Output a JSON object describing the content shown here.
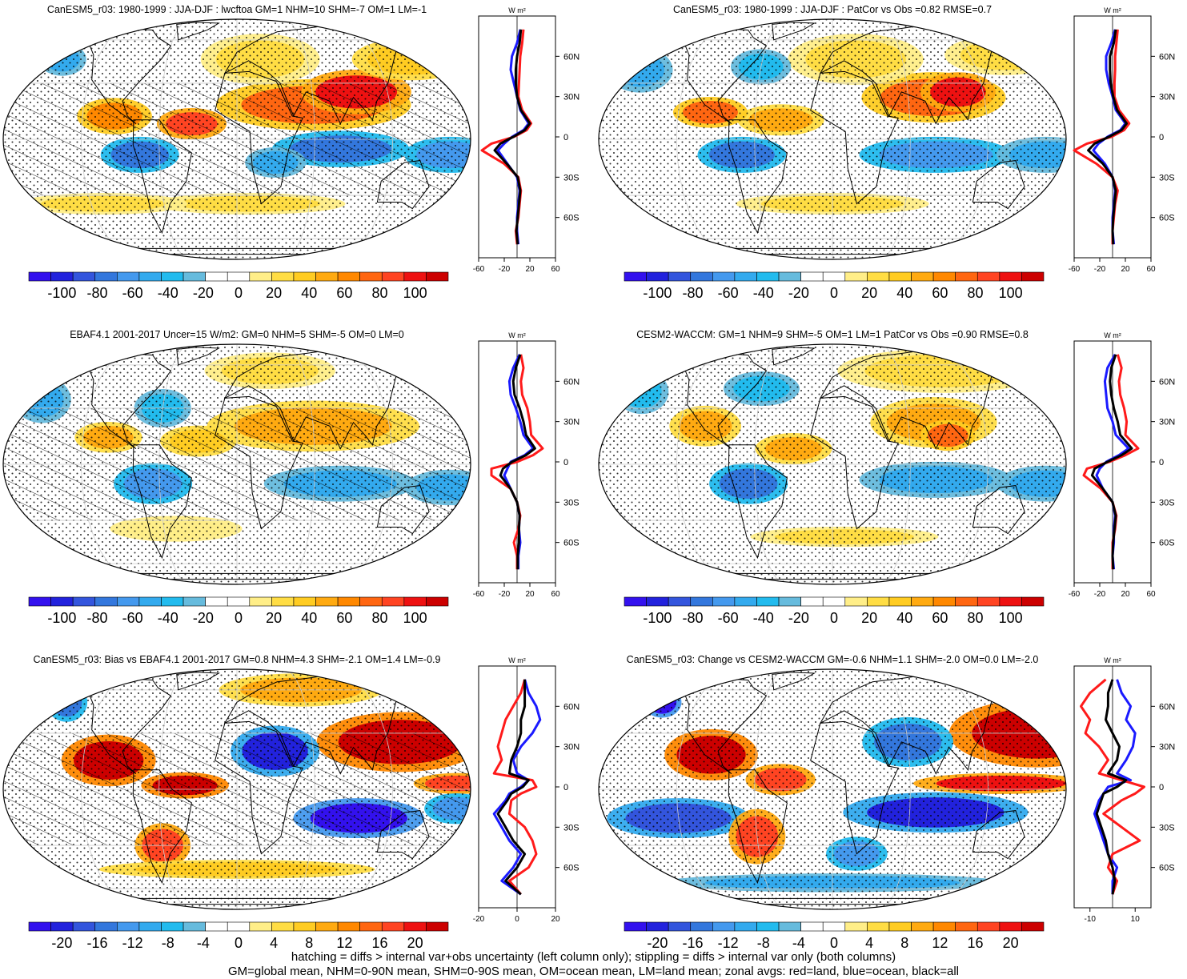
{
  "colors": {
    "ocean_line": "#1a1aff",
    "land_line": "#ff1a1a",
    "all_line": "#000000",
    "coast": "#000000",
    "palette": [
      "#3311ee",
      "#2222dd",
      "#3355dd",
      "#3377dd",
      "#4499ee",
      "#33aaee",
      "#22bbee",
      "#66bbdd",
      "#ffffff",
      "#ffffff",
      "#ffee88",
      "#ffdd44",
      "#ffcc22",
      "#ffaa11",
      "#ff8800",
      "#ff6611",
      "#ff4422",
      "#ee1111",
      "#cc0000"
    ]
  },
  "units_label": "W m²",
  "lat_labels": [
    "60N",
    "30N",
    "0",
    "30S",
    "60S"
  ],
  "footer": {
    "line1": "hatching = diffs > internal var+obs uncertainty (left column only); stippling = diffs > internal var only (both columns)",
    "line2": "GM=global mean, NHM=0-90N mean, SHM=0-90S mean, OM=ocean mean, LM=land mean; zonal avgs: red=land, blue=ocean, black=all"
  },
  "chart_data": [
    {
      "type": "heatmap",
      "title": "CanESM5_r03: 1980-1999 : JJA-DJF : lwcftoa GM=1 NHM=10 SHM=-7 OM=1 LM=-1",
      "colorbar_ticks": [
        "-100",
        "-80",
        "-60",
        "-40",
        "-20",
        "0",
        "20",
        "40",
        "60",
        "80",
        "100"
      ],
      "zonal_xticks": [
        "-60",
        "-20",
        "20",
        "60"
      ],
      "zonal_xlim": [
        -60,
        60
      ],
      "hatched": true,
      "features": [
        {
          "lon": 60,
          "lat": 18,
          "sx": 55,
          "sy": 10,
          "v": 60
        },
        {
          "lon": 95,
          "lat": 25,
          "sx": 30,
          "sy": 9,
          "v": 80
        },
        {
          "lon": -35,
          "lat": 8,
          "sx": 20,
          "sy": 6,
          "v": 70
        },
        {
          "lon": -95,
          "lat": 12,
          "sx": 22,
          "sy": 7,
          "v": 55
        },
        {
          "lon": 150,
          "lat": 45,
          "sx": 30,
          "sy": 10,
          "v": 30
        },
        {
          "lon": 20,
          "lat": 45,
          "sx": 35,
          "sy": 12,
          "v": 25
        },
        {
          "lon": -150,
          "lat": 45,
          "sx": 20,
          "sy": 8,
          "v": -45
        },
        {
          "lon": 80,
          "lat": -5,
          "sx": 40,
          "sy": 7,
          "v": -65
        },
        {
          "lon": 165,
          "lat": -8,
          "sx": 28,
          "sy": 7,
          "v": -55
        },
        {
          "lon": -75,
          "lat": -8,
          "sx": 22,
          "sy": 7,
          "v": -65
        },
        {
          "lon": 30,
          "lat": -12,
          "sx": 18,
          "sy": 6,
          "v": -40
        },
        {
          "lon": 10,
          "lat": -35,
          "sx": 60,
          "sy": 5,
          "v": 20
        },
        {
          "lon": -110,
          "lat": -35,
          "sx": 50,
          "sy": 5,
          "v": 20
        }
      ],
      "zonal": {
        "lat": [
          80,
          70,
          60,
          50,
          40,
          30,
          20,
          10,
          5,
          0,
          -5,
          -10,
          -20,
          -30,
          -40,
          -50,
          -60,
          -70,
          -80
        ],
        "land": [
          10,
          8,
          5,
          4,
          3,
          2,
          8,
          22,
          15,
          -5,
          -40,
          -55,
          -20,
          2,
          6,
          4,
          2,
          -2,
          0
        ],
        "ocean": [
          5,
          0,
          -8,
          -10,
          -5,
          0,
          5,
          18,
          10,
          -8,
          -20,
          -30,
          -15,
          0,
          4,
          2,
          0,
          0,
          2
        ],
        "all": [
          6,
          4,
          0,
          -2,
          -2,
          0,
          6,
          20,
          12,
          -6,
          -26,
          -35,
          -16,
          1,
          5,
          3,
          1,
          -1,
          1
        ]
      }
    },
    {
      "type": "heatmap",
      "title": "CanESM5_r03: 1980-1999 : JJA-DJF : PatCor vs Obs =0.82 RMSE=0.7",
      "colorbar_ticks": [
        "-100",
        "-80",
        "-60",
        "-40",
        "-20",
        "0",
        "20",
        "40",
        "60",
        "80",
        "100"
      ],
      "zonal_xticks": [
        "-60",
        "-20",
        "20",
        "60"
      ],
      "zonal_xlim": [
        -60,
        60
      ],
      "hatched": false,
      "features": [
        {
          "lon": 80,
          "lat": 22,
          "sx": 40,
          "sy": 10,
          "v": 60
        },
        {
          "lon": 100,
          "lat": 25,
          "sx": 20,
          "sy": 8,
          "v": 85
        },
        {
          "lon": -40,
          "lat": 10,
          "sx": 25,
          "sy": 6,
          "v": 45
        },
        {
          "lon": -95,
          "lat": 14,
          "sx": 22,
          "sy": 6,
          "v": 65
        },
        {
          "lon": 20,
          "lat": 45,
          "sx": 40,
          "sy": 12,
          "v": 25
        },
        {
          "lon": 150,
          "lat": 48,
          "sx": 30,
          "sy": 10,
          "v": 25
        },
        {
          "lon": -160,
          "lat": 38,
          "sx": 25,
          "sy": 10,
          "v": -40
        },
        {
          "lon": -60,
          "lat": 40,
          "sx": 20,
          "sy": 8,
          "v": -30
        },
        {
          "lon": 80,
          "lat": -8,
          "sx": 45,
          "sy": 7,
          "v": -55
        },
        {
          "lon": 165,
          "lat": -8,
          "sx": 30,
          "sy": 7,
          "v": -45
        },
        {
          "lon": -70,
          "lat": -8,
          "sx": 25,
          "sy": 7,
          "v": -60
        },
        {
          "lon": 0,
          "lat": -35,
          "sx": 60,
          "sy": 5,
          "v": 20
        }
      ],
      "zonal": {
        "lat": [
          80,
          70,
          60,
          50,
          40,
          30,
          20,
          10,
          5,
          0,
          -5,
          -10,
          -20,
          -30,
          -40,
          -50,
          -60,
          -70,
          -80
        ],
        "land": [
          8,
          6,
          4,
          4,
          3,
          3,
          10,
          26,
          18,
          -2,
          -40,
          -60,
          -25,
          0,
          8,
          4,
          2,
          0,
          0
        ],
        "ocean": [
          4,
          -2,
          -10,
          -10,
          -6,
          0,
          5,
          20,
          12,
          -8,
          -22,
          -30,
          -12,
          0,
          4,
          2,
          0,
          0,
          2
        ],
        "all": [
          5,
          2,
          -4,
          -4,
          -3,
          1,
          7,
          22,
          14,
          -6,
          -28,
          -38,
          -15,
          0,
          5,
          3,
          1,
          0,
          1
        ]
      }
    },
    {
      "type": "heatmap",
      "title": "EBAF4.1 2001-2017 Uncer=15 W/m2: GM=0 NHM=5 SHM=-5 OM=0 LM=0",
      "colorbar_ticks": [
        "-100",
        "-80",
        "-60",
        "-40",
        "-20",
        "0",
        "20",
        "40",
        "60",
        "80",
        "100"
      ],
      "zonal_xticks": [
        "-60",
        "-20",
        "20",
        "60"
      ],
      "zonal_xlim": [
        -60,
        60
      ],
      "hatched": true,
      "features": [
        {
          "lon": 60,
          "lat": 20,
          "sx": 60,
          "sy": 10,
          "v": 45
        },
        {
          "lon": -30,
          "lat": 12,
          "sx": 22,
          "sy": 6,
          "v": 35
        },
        {
          "lon": -100,
          "lat": 14,
          "sx": 20,
          "sy": 6,
          "v": 40
        },
        {
          "lon": 30,
          "lat": 55,
          "sx": 40,
          "sy": 10,
          "v": 20
        },
        {
          "lon": -160,
          "lat": 35,
          "sx": 22,
          "sy": 10,
          "v": -45
        },
        {
          "lon": -60,
          "lat": 30,
          "sx": 18,
          "sy": 8,
          "v": -30
        },
        {
          "lon": 80,
          "lat": -10,
          "sx": 45,
          "sy": 7,
          "v": -45
        },
        {
          "lon": 165,
          "lat": -12,
          "sx": 28,
          "sy": 7,
          "v": -40
        },
        {
          "lon": -65,
          "lat": -10,
          "sx": 22,
          "sy": 8,
          "v": -55
        },
        {
          "lon": -50,
          "lat": -35,
          "sx": 40,
          "sy": 6,
          "v": 15
        }
      ],
      "zonal": {
        "lat": [
          80,
          70,
          60,
          50,
          40,
          30,
          20,
          10,
          5,
          0,
          -5,
          -10,
          -20,
          -30,
          -40,
          -50,
          -60,
          -70,
          -80
        ],
        "land": [
          6,
          10,
          6,
          8,
          16,
          20,
          22,
          40,
          25,
          0,
          -40,
          -40,
          -10,
          0,
          5,
          2,
          -5,
          0,
          0
        ],
        "ocean": [
          4,
          -6,
          -12,
          -10,
          -2,
          5,
          10,
          25,
          12,
          -10,
          -15,
          -20,
          -10,
          0,
          4,
          3,
          5,
          2,
          2
        ],
        "all": [
          5,
          -2,
          -6,
          -4,
          4,
          10,
          14,
          28,
          14,
          -8,
          -22,
          -26,
          -10,
          0,
          4,
          3,
          3,
          1,
          1
        ]
      }
    },
    {
      "type": "heatmap",
      "title": "CESM2-WACCM: GM=1 NHM=9 SHM=-5 OM=1 LM=1 PatCor vs Obs =0.90 RMSE=0.8",
      "colorbar_ticks": [
        "-100",
        "-80",
        "-60",
        "-40",
        "-20",
        "0",
        "20",
        "40",
        "60",
        "80",
        "100"
      ],
      "zonal_xticks": [
        "-60",
        "-20",
        "20",
        "60"
      ],
      "zonal_xlim": [
        -60,
        60
      ],
      "hatched": false,
      "features": [
        {
          "lon": 80,
          "lat": 22,
          "sx": 35,
          "sy": 10,
          "v": 45
        },
        {
          "lon": 90,
          "lat": 15,
          "sx": 15,
          "sy": 6,
          "v": 60
        },
        {
          "lon": -100,
          "lat": 20,
          "sx": 22,
          "sy": 8,
          "v": 45
        },
        {
          "lon": -30,
          "lat": 8,
          "sx": 22,
          "sy": 6,
          "v": 40
        },
        {
          "lon": 100,
          "lat": 55,
          "sx": 60,
          "sy": 12,
          "v": 20
        },
        {
          "lon": -160,
          "lat": 40,
          "sx": 22,
          "sy": 10,
          "v": -35
        },
        {
          "lon": -60,
          "lat": 42,
          "sx": 25,
          "sy": 8,
          "v": -30
        },
        {
          "lon": 80,
          "lat": -8,
          "sx": 45,
          "sy": 7,
          "v": -45
        },
        {
          "lon": 165,
          "lat": -10,
          "sx": 30,
          "sy": 7,
          "v": -40
        },
        {
          "lon": -65,
          "lat": -10,
          "sx": 22,
          "sy": 8,
          "v": -60
        },
        {
          "lon": 10,
          "lat": -40,
          "sx": 60,
          "sy": 5,
          "v": 20
        }
      ],
      "zonal": {
        "lat": [
          80,
          70,
          60,
          50,
          40,
          30,
          20,
          10,
          5,
          0,
          -5,
          -10,
          -20,
          -30,
          -40,
          -50,
          -60,
          -70,
          -80
        ],
        "land": [
          8,
          14,
          10,
          12,
          18,
          22,
          20,
          40,
          20,
          -5,
          -40,
          -45,
          -18,
          0,
          6,
          4,
          0,
          0,
          0
        ],
        "ocean": [
          4,
          -8,
          -12,
          -10,
          -8,
          0,
          5,
          25,
          10,
          -10,
          -20,
          -25,
          -15,
          0,
          4,
          2,
          2,
          0,
          2
        ],
        "all": [
          5,
          -2,
          -4,
          -2,
          2,
          8,
          12,
          30,
          14,
          -8,
          -28,
          -32,
          -15,
          0,
          5,
          3,
          1,
          0,
          1
        ]
      }
    },
    {
      "type": "heatmap",
      "title": "CanESM5_r03: Bias vs EBAF4.1 2001-2017 GM=0.8 NHM=4.3 SHM=-2.1 OM=1.4 LM=-0.9",
      "colorbar_ticks": [
        "-20",
        "-16",
        "-12",
        "-8",
        "-4",
        "0",
        "4",
        "8",
        "12",
        "16",
        "20"
      ],
      "zonal_xticks": [
        "-20",
        "0",
        "20"
      ],
      "zonal_xlim": [
        -20,
        20
      ],
      "hatched": true,
      "features": [
        {
          "lon": 130,
          "lat": 25,
          "sx": 45,
          "sy": 12,
          "v": 18
        },
        {
          "lon": -100,
          "lat": 15,
          "sx": 28,
          "sy": 10,
          "v": 20
        },
        {
          "lon": -40,
          "lat": 2,
          "sx": 25,
          "sy": 5,
          "v": 20
        },
        {
          "lon": 170,
          "lat": 3,
          "sx": 25,
          "sy": 4,
          "v": 14
        },
        {
          "lon": 30,
          "lat": 20,
          "sx": 25,
          "sy": 10,
          "v": -16
        },
        {
          "lon": 95,
          "lat": -15,
          "sx": 40,
          "sy": 8,
          "v": -18
        },
        {
          "lon": 170,
          "lat": -10,
          "sx": 20,
          "sy": 6,
          "v": -10
        },
        {
          "lon": -150,
          "lat": 50,
          "sx": 20,
          "sy": 10,
          "v": -12
        },
        {
          "lon": -60,
          "lat": -30,
          "sx": 15,
          "sy": 10,
          "v": 14
        },
        {
          "lon": 0,
          "lat": -45,
          "sx": 90,
          "sy": 5,
          "v": 6
        },
        {
          "lon": 60,
          "lat": 60,
          "sx": 50,
          "sy": 10,
          "v": 8
        }
      ],
      "zonal": {
        "lat": [
          80,
          70,
          60,
          50,
          40,
          30,
          20,
          10,
          5,
          0,
          -5,
          -10,
          -20,
          -30,
          -40,
          -50,
          -60,
          -70,
          -80
        ],
        "land": [
          4,
          2,
          -2,
          -6,
          -8,
          -10,
          -8,
          -12,
          8,
          10,
          2,
          -3,
          -4,
          4,
          8,
          10,
          6,
          -4,
          2
        ],
        "ocean": [
          4,
          6,
          10,
          12,
          8,
          2,
          -2,
          0,
          6,
          2,
          -4,
          -6,
          -12,
          -8,
          -4,
          2,
          -2,
          -8,
          2
        ],
        "all": [
          4,
          4,
          4,
          2,
          2,
          0,
          -3,
          -4,
          6,
          3,
          -3,
          -5,
          -10,
          -6,
          -2,
          4,
          0,
          -6,
          2
        ]
      }
    },
    {
      "type": "heatmap",
      "title": "CanESM5_r03: Change vs CESM2-WACCM GM=-0.6 NHM=1.1 SHM=-2.0 OM=0.0 LM=-2.0",
      "colorbar_ticks": [
        "-20",
        "-16",
        "-12",
        "-8",
        "-4",
        "0",
        "4",
        "8",
        "12",
        "16",
        "20"
      ],
      "zonal_xticks": [
        "-10",
        "10"
      ],
      "zonal_xlim": [
        -17,
        17
      ],
      "hatched": false,
      "features": [
        {
          "lon": 165,
          "lat": 30,
          "sx": 45,
          "sy": 14,
          "v": 20
        },
        {
          "lon": -95,
          "lat": 18,
          "sx": 28,
          "sy": 10,
          "v": 18
        },
        {
          "lon": -40,
          "lat": 5,
          "sx": 20,
          "sy": 6,
          "v": 14
        },
        {
          "lon": 130,
          "lat": 3,
          "sx": 50,
          "sy": 4,
          "v": 16
        },
        {
          "lon": -150,
          "lat": 50,
          "sx": 18,
          "sy": 8,
          "v": -18
        },
        {
          "lon": 60,
          "lat": 25,
          "sx": 25,
          "sy": 10,
          "v": -12
        },
        {
          "lon": 80,
          "lat": -12,
          "sx": 55,
          "sy": 8,
          "v": -16
        },
        {
          "lon": -120,
          "lat": -15,
          "sx": 40,
          "sy": 8,
          "v": -14
        },
        {
          "lon": 20,
          "lat": -35,
          "sx": 20,
          "sy": 8,
          "v": -10
        },
        {
          "lon": -60,
          "lat": -25,
          "sx": 15,
          "sy": 12,
          "v": 14
        },
        {
          "lon": 0,
          "lat": -55,
          "sx": 120,
          "sy": 6,
          "v": -8
        }
      ],
      "zonal": {
        "lat": [
          80,
          70,
          60,
          50,
          40,
          30,
          20,
          10,
          5,
          0,
          -5,
          -10,
          -20,
          -30,
          -40,
          -50,
          -60,
          -70,
          -80
        ],
        "land": [
          -3,
          -10,
          -14,
          -10,
          -12,
          -6,
          -2,
          -6,
          4,
          14,
          10,
          4,
          -4,
          4,
          12,
          0,
          -2,
          2,
          0
        ],
        "ocean": [
          2,
          4,
          8,
          6,
          10,
          9,
          6,
          2,
          8,
          -2,
          -4,
          -6,
          -8,
          -6,
          -4,
          -2,
          2,
          0,
          0
        ],
        "all": [
          0,
          -2,
          -2,
          -3,
          0,
          3,
          2,
          -2,
          6,
          2,
          -4,
          -5,
          -7,
          -5,
          -3,
          -2,
          0,
          1,
          0
        ]
      }
    }
  ]
}
